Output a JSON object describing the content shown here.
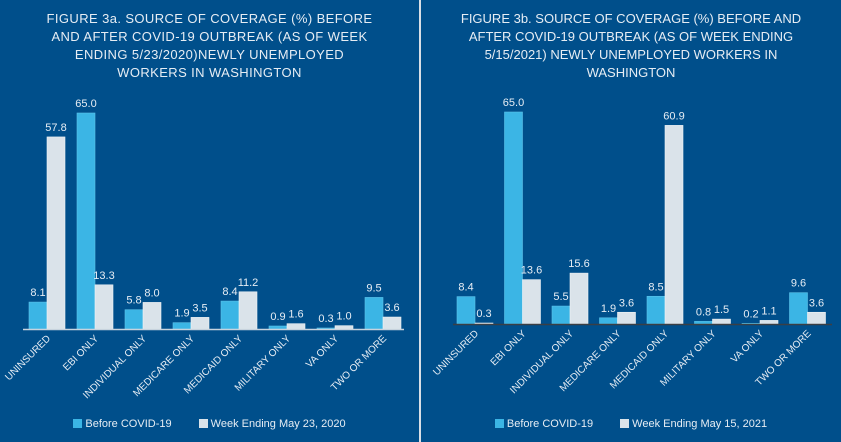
{
  "colors": {
    "background": "#004f8b",
    "before": "#3bb5e5",
    "after": "#dae3ea",
    "text": "#e6edf4",
    "axis_a": "#c7d3de",
    "axis_b": "#3a3f45"
  },
  "chart_data": [
    {
      "type": "bar",
      "title": "FIGURE 3a. SOURCE OF COVERAGE (%) BEFORE AND AFTER COVID-19 OUTBREAK (AS OF WEEK ENDING 5/23/2020)NEWLY UNEMPLOYED WORKERS IN WASHINGTON",
      "title_lines": "FIGURE 3a. SOURCE OF COVERAGE (%) BEFORE\nAND AFTER COVID-19 OUTBREAK (AS OF WEEK\nENDING 5/23/2020)NEWLY UNEMPLOYED\nWORKERS IN WASHINGTON",
      "categories": [
        "UNINSURED",
        "EBI ONLY",
        "INDIVIDUAL ONLY",
        "MEDICARE ONLY",
        "MEDICAID ONLY",
        "MILITARY ONLY",
        "VA ONLY",
        "TWO OR MORE"
      ],
      "series": [
        {
          "name": "Before COVID-19",
          "values": [
            8.1,
            65.0,
            5.8,
            1.9,
            8.4,
            0.9,
            0.3,
            9.5
          ]
        },
        {
          "name": "Week Ending May 23, 2020",
          "values": [
            57.8,
            13.3,
            8.0,
            3.5,
            11.2,
            1.6,
            1.0,
            3.6
          ]
        }
      ],
      "xlabel": "",
      "ylabel": "",
      "ylim": [
        0,
        65
      ],
      "grid": false,
      "legend_position": "bottom"
    },
    {
      "type": "bar",
      "title": "FIGURE 3b. SOURCE OF COVERAGE (%) BEFORE AND AFTER COVID-19 OUTBREAK (AS OF WEEK ENDING 5/15/2021) NEWLY UNEMPLOYED WORKERS IN WASHINGTON",
      "title_lines": "FIGURE 3b. SOURCE OF COVERAGE (%) BEFORE AND\nAFTER COVID-19 OUTBREAK (AS OF WEEK ENDING\n5/15/2021) NEWLY UNEMPLOYED WORKERS IN\nWASHINGTON",
      "categories": [
        "UNINSURED",
        "EBI ONLY",
        "INDIVIDUAL ONLY",
        "MEDICARE ONLY",
        "MEDICAID ONLY",
        "MILITARY ONLY",
        "VA ONLY",
        "TWO OR MORE"
      ],
      "series": [
        {
          "name": "Before COVID-19",
          "values": [
            8.4,
            65.0,
            5.5,
            1.9,
            8.5,
            0.8,
            0.2,
            9.6
          ]
        },
        {
          "name": "Week Ending May 15, 2021",
          "values": [
            0.3,
            13.6,
            15.6,
            3.6,
            60.9,
            1.5,
            1.1,
            3.6
          ]
        }
      ],
      "xlabel": "",
      "ylabel": "",
      "ylim": [
        0,
        65
      ],
      "grid": false,
      "legend_position": "bottom"
    }
  ]
}
